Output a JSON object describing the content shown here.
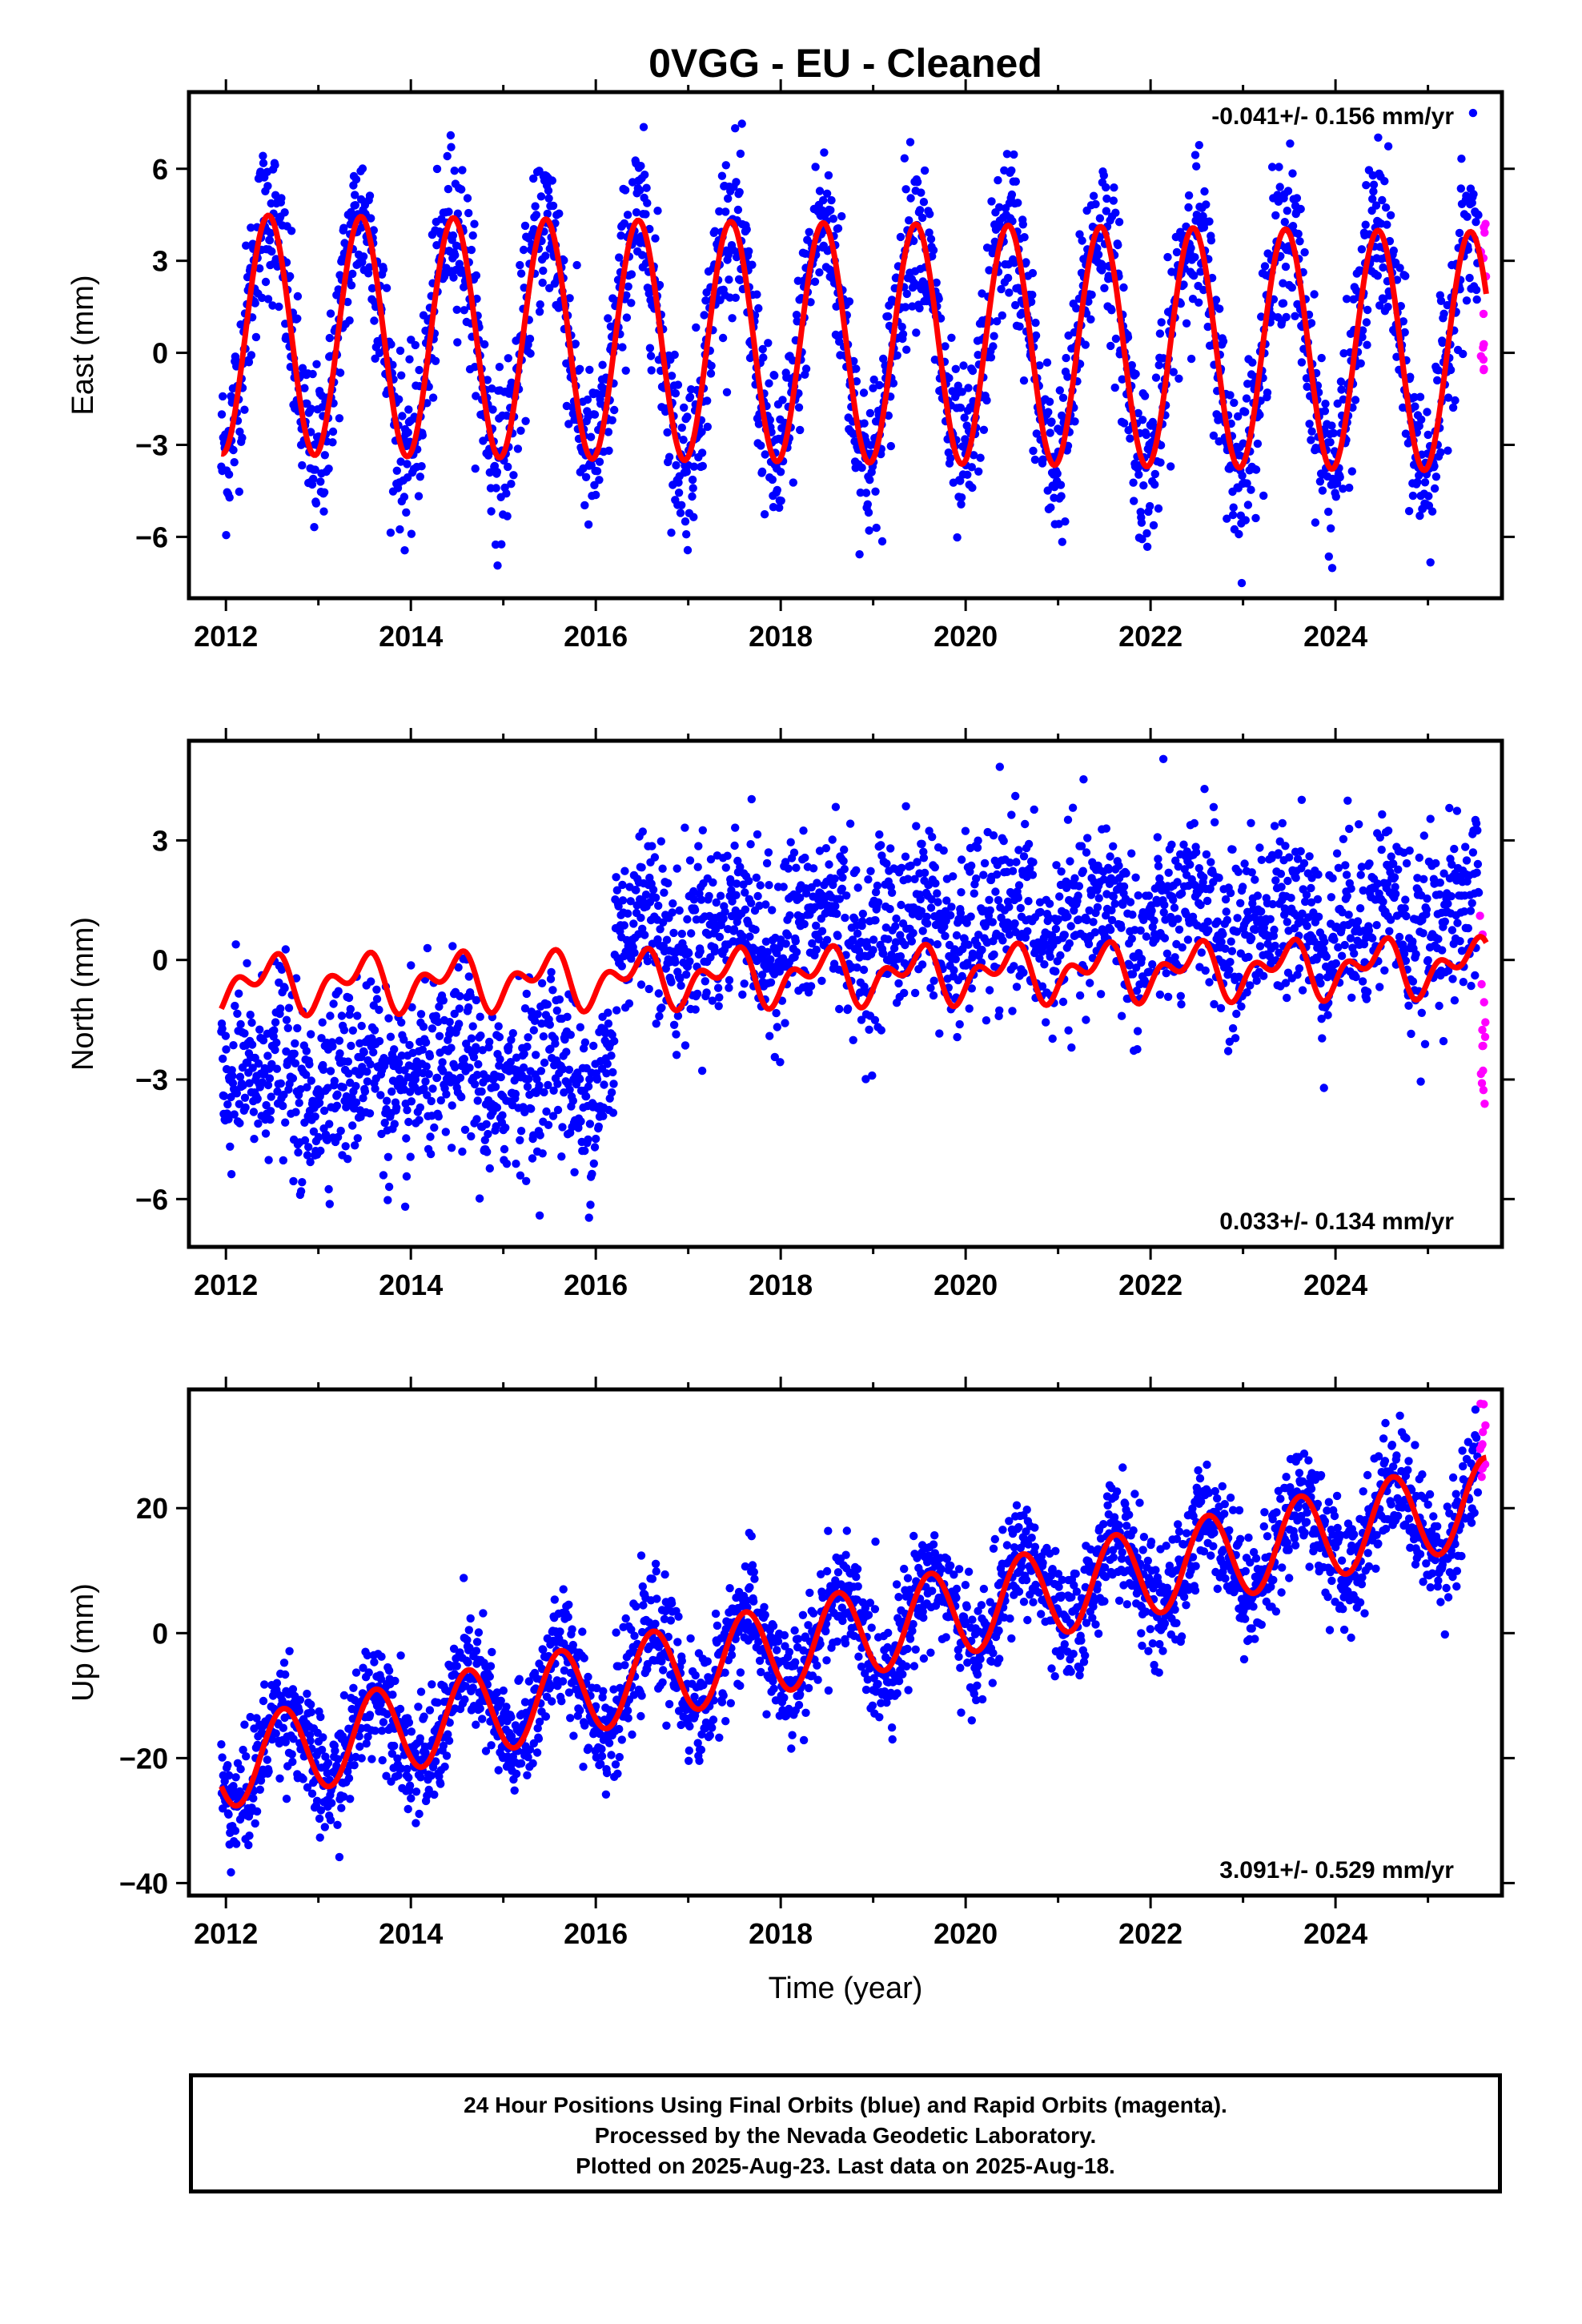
{
  "title": "0VGG  - EU - Cleaned",
  "footer": {
    "line1": "24 Hour Positions Using Final Orbits (blue) and Rapid Orbits (magenta).",
    "line2": "Processed by the Nevada Geodetic Laboratory.",
    "line3": "Plotted on 2025-Aug-23. Last data on 2025-Aug-18."
  },
  "colors": {
    "final_orbits": "#0000ff",
    "rapid_orbits": "#ff00ff",
    "model_fit": "#ff0000"
  },
  "chart_data": [
    {
      "type": "scatter",
      "ylabel": "East (mm)",
      "xlim": [
        2011.6,
        2025.8
      ],
      "ylim": [
        -8,
        8.5
      ],
      "xticks": [
        2012,
        2014,
        2016,
        2018,
        2020,
        2022,
        2024
      ],
      "yticks": [
        -6,
        -3,
        0,
        3,
        6
      ],
      "rate_label": "-0.041+/- 0.156 mm/yr",
      "series": [
        {
          "name": "Final Orbits",
          "model": {
            "offset": 0.6,
            "slope": -0.041,
            "amp1": 3.9,
            "phase1": 0.46,
            "amp2": 0.0,
            "phase2": 0.0,
            "steps": []
          },
          "scatter_sd": 1.35,
          "x_start": 2011.95,
          "x_end": 2025.55
        },
        {
          "name": "Rapid Orbits",
          "x_start": 2025.56,
          "x_end": 2025.63,
          "y_range": [
            -1.0,
            4.8
          ]
        }
      ],
      "fit": {
        "x_start": 2011.95,
        "x_end": 2025.63
      }
    },
    {
      "type": "scatter",
      "ylabel": "North (mm)",
      "xlim": [
        2011.6,
        2025.8
      ],
      "ylim": [
        -7.2,
        5.5
      ],
      "xticks": [
        2012,
        2014,
        2016,
        2018,
        2020,
        2022,
        2024
      ],
      "yticks": [
        -6,
        -3,
        0,
        3
      ],
      "rate_label": "0.033+/- 0.134 mm/yr",
      "series": [
        {
          "name": "Final Orbits",
          "model": {
            "offset": -3.0,
            "slope": 0.033,
            "amp1": 0.5,
            "phase1": 0.45,
            "amp2": 0.4,
            "phase2": 0.1,
            "steps": [
              {
                "t": 2016.2,
                "size": 3.6
              }
            ]
          },
          "scatter_sd": 1.1,
          "x_start": 2011.95,
          "x_end": 2025.55
        },
        {
          "name": "Rapid Orbits",
          "x_start": 2025.56,
          "x_end": 2025.63,
          "y_range": [
            -4.4,
            2.3
          ]
        }
      ],
      "fit": {
        "x_start": 2011.95,
        "x_end": 2025.63,
        "model": {
          "offset": -0.6,
          "slope": 0.033,
          "amp1": 0.5,
          "phase1": 0.45,
          "amp2": 0.4,
          "phase2": 0.1,
          "steps": []
        }
      }
    },
    {
      "type": "scatter",
      "ylabel": "Up (mm)",
      "xlabel": "Time (year)",
      "xlim": [
        2011.6,
        2025.8
      ],
      "ylim": [
        -42,
        39
      ],
      "xticks": [
        2012,
        2014,
        2016,
        2018,
        2020,
        2022,
        2024
      ],
      "yticks": [
        -40,
        -20,
        0,
        20
      ],
      "rate_label": "3.091+/- 0.529 mm/yr",
      "series": [
        {
          "name": "Final Orbits",
          "model": {
            "offset": -21,
            "slope": 3.091,
            "amp1": 7.0,
            "phase1": 0.62,
            "amp2": 0.0,
            "phase2": 0.0,
            "steps": []
          },
          "scatter_sd": 4.6,
          "x_start": 2011.95,
          "x_end": 2025.55
        },
        {
          "name": "Rapid Orbits",
          "x_start": 2025.56,
          "x_end": 2025.63,
          "y_range": [
            25,
            38
          ]
        }
      ],
      "fit": {
        "x_start": 2011.95,
        "x_end": 2025.63
      }
    }
  ]
}
